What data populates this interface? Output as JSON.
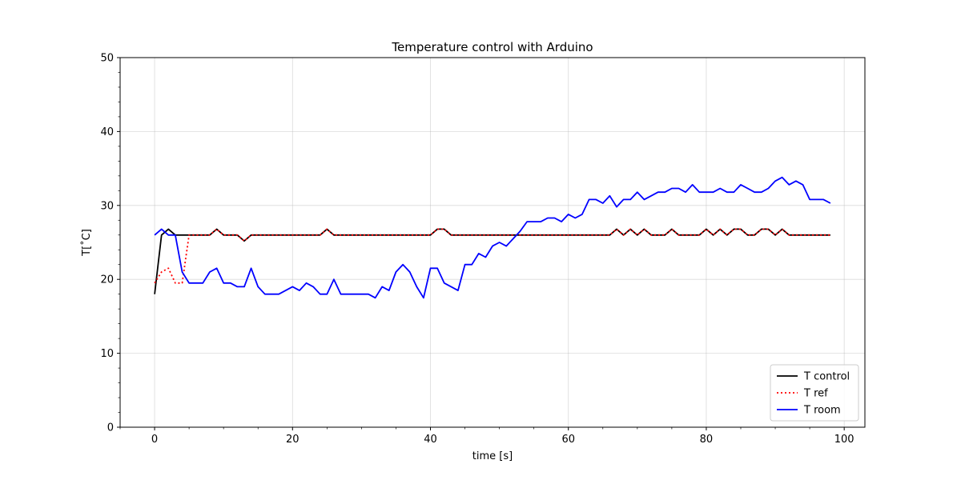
{
  "chart_data": {
    "type": "line",
    "title": "Temperature control with Arduino",
    "xlabel": "time [s]",
    "ylabel": "T[˚C]",
    "xlim": [
      -5,
      103
    ],
    "ylim": [
      0,
      50
    ],
    "xticks": [
      0,
      20,
      40,
      60,
      80,
      100
    ],
    "yticks": [
      0,
      10,
      20,
      30,
      40,
      50
    ],
    "grid": true,
    "legend_position": "lower-right",
    "series": [
      {
        "name": "T control",
        "color": "#000000",
        "style": "solid",
        "points": [
          [
            0,
            18
          ],
          [
            1,
            26
          ],
          [
            2,
            26.8
          ],
          [
            3,
            26
          ],
          [
            4,
            26
          ],
          [
            5,
            26
          ],
          [
            6,
            26
          ],
          [
            7,
            26
          ],
          [
            8,
            26
          ],
          [
            9,
            26.8
          ],
          [
            10,
            26
          ],
          [
            11,
            26
          ],
          [
            12,
            26
          ],
          [
            13,
            25.2
          ],
          [
            14,
            26
          ],
          [
            15,
            26
          ],
          [
            16,
            26
          ],
          [
            17,
            26
          ],
          [
            18,
            26
          ],
          [
            19,
            26
          ],
          [
            20,
            26
          ],
          [
            21,
            26
          ],
          [
            22,
            26
          ],
          [
            23,
            26
          ],
          [
            24,
            26
          ],
          [
            25,
            26.8
          ],
          [
            26,
            26
          ],
          [
            27,
            26
          ],
          [
            28,
            26
          ],
          [
            29,
            26
          ],
          [
            30,
            26
          ],
          [
            31,
            26
          ],
          [
            32,
            26
          ],
          [
            33,
            26
          ],
          [
            34,
            26
          ],
          [
            35,
            26
          ],
          [
            36,
            26
          ],
          [
            37,
            26
          ],
          [
            38,
            26
          ],
          [
            39,
            26
          ],
          [
            40,
            26
          ],
          [
            41,
            26.8
          ],
          [
            42,
            26.8
          ],
          [
            43,
            26
          ],
          [
            44,
            26
          ],
          [
            45,
            26
          ],
          [
            46,
            26
          ],
          [
            47,
            26
          ],
          [
            48,
            26
          ],
          [
            49,
            26
          ],
          [
            50,
            26
          ],
          [
            51,
            26
          ],
          [
            52,
            26
          ],
          [
            53,
            26
          ],
          [
            54,
            26
          ],
          [
            55,
            26
          ],
          [
            56,
            26
          ],
          [
            57,
            26
          ],
          [
            58,
            26
          ],
          [
            59,
            26
          ],
          [
            60,
            26
          ],
          [
            61,
            26
          ],
          [
            62,
            26
          ],
          [
            63,
            26
          ],
          [
            64,
            26
          ],
          [
            65,
            26
          ],
          [
            66,
            26
          ],
          [
            67,
            26.8
          ],
          [
            68,
            26
          ],
          [
            69,
            26.8
          ],
          [
            70,
            26
          ],
          [
            71,
            26.8
          ],
          [
            72,
            26
          ],
          [
            73,
            26
          ],
          [
            74,
            26
          ],
          [
            75,
            26.8
          ],
          [
            76,
            26
          ],
          [
            77,
            26
          ],
          [
            78,
            26
          ],
          [
            79,
            26
          ],
          [
            80,
            26.8
          ],
          [
            81,
            26
          ],
          [
            82,
            26.8
          ],
          [
            83,
            26
          ],
          [
            84,
            26.8
          ],
          [
            85,
            26.8
          ],
          [
            86,
            26
          ],
          [
            87,
            26
          ],
          [
            88,
            26.8
          ],
          [
            89,
            26.8
          ],
          [
            90,
            26
          ],
          [
            91,
            26.8
          ],
          [
            92,
            26
          ],
          [
            93,
            26
          ],
          [
            94,
            26
          ],
          [
            95,
            26
          ],
          [
            96,
            26
          ],
          [
            97,
            26
          ],
          [
            98,
            26
          ]
        ]
      },
      {
        "name": "T ref",
        "color": "#ff0000",
        "style": "dotted",
        "points": [
          [
            0,
            19.5
          ],
          [
            1,
            21
          ],
          [
            2,
            21.5
          ],
          [
            3,
            19.5
          ],
          [
            4,
            19.5
          ],
          [
            5,
            26
          ],
          [
            6,
            26
          ],
          [
            7,
            26
          ],
          [
            8,
            26
          ],
          [
            9,
            26.8
          ],
          [
            10,
            26
          ],
          [
            11,
            26
          ],
          [
            12,
            26
          ],
          [
            13,
            25.2
          ],
          [
            14,
            26
          ],
          [
            15,
            26
          ],
          [
            16,
            26
          ],
          [
            17,
            26
          ],
          [
            18,
            26
          ],
          [
            19,
            26
          ],
          [
            20,
            26
          ],
          [
            21,
            26
          ],
          [
            22,
            26
          ],
          [
            23,
            26
          ],
          [
            24,
            26
          ],
          [
            25,
            26.8
          ],
          [
            26,
            26
          ],
          [
            27,
            26
          ],
          [
            28,
            26
          ],
          [
            29,
            26
          ],
          [
            30,
            26
          ],
          [
            31,
            26
          ],
          [
            32,
            26
          ],
          [
            33,
            26
          ],
          [
            34,
            26
          ],
          [
            35,
            26
          ],
          [
            36,
            26
          ],
          [
            37,
            26
          ],
          [
            38,
            26
          ],
          [
            39,
            26
          ],
          [
            40,
            26
          ],
          [
            41,
            26.8
          ],
          [
            42,
            26.8
          ],
          [
            43,
            26
          ],
          [
            44,
            26
          ],
          [
            45,
            26
          ],
          [
            46,
            26
          ],
          [
            47,
            26
          ],
          [
            48,
            26
          ],
          [
            49,
            26
          ],
          [
            50,
            26
          ],
          [
            51,
            26
          ],
          [
            52,
            26
          ],
          [
            53,
            26
          ],
          [
            54,
            26
          ],
          [
            55,
            26
          ],
          [
            56,
            26
          ],
          [
            57,
            26
          ],
          [
            58,
            26
          ],
          [
            59,
            26
          ],
          [
            60,
            26
          ],
          [
            61,
            26
          ],
          [
            62,
            26
          ],
          [
            63,
            26
          ],
          [
            64,
            26
          ],
          [
            65,
            26
          ],
          [
            66,
            26
          ],
          [
            67,
            26.8
          ],
          [
            68,
            26
          ],
          [
            69,
            26.8
          ],
          [
            70,
            26
          ],
          [
            71,
            26.8
          ],
          [
            72,
            26
          ],
          [
            73,
            26
          ],
          [
            74,
            26
          ],
          [
            75,
            26.8
          ],
          [
            76,
            26
          ],
          [
            77,
            26
          ],
          [
            78,
            26
          ],
          [
            79,
            26
          ],
          [
            80,
            26.8
          ],
          [
            81,
            26
          ],
          [
            82,
            26.8
          ],
          [
            83,
            26
          ],
          [
            84,
            26.8
          ],
          [
            85,
            26.8
          ],
          [
            86,
            26
          ],
          [
            87,
            26
          ],
          [
            88,
            26.8
          ],
          [
            89,
            26.8
          ],
          [
            90,
            26
          ],
          [
            91,
            26.8
          ],
          [
            92,
            26
          ],
          [
            93,
            26
          ],
          [
            94,
            26
          ],
          [
            95,
            26
          ],
          [
            96,
            26
          ],
          [
            97,
            26
          ],
          [
            98,
            26
          ]
        ]
      },
      {
        "name": "T room",
        "color": "#0000ff",
        "style": "solid",
        "points": [
          [
            0,
            26
          ],
          [
            1,
            26.8
          ],
          [
            2,
            26
          ],
          [
            3,
            26
          ],
          [
            4,
            21
          ],
          [
            5,
            19.5
          ],
          [
            6,
            19.5
          ],
          [
            7,
            19.5
          ],
          [
            8,
            21
          ],
          [
            9,
            21.5
          ],
          [
            10,
            19.5
          ],
          [
            11,
            19.5
          ],
          [
            12,
            19
          ],
          [
            13,
            19
          ],
          [
            14,
            21.5
          ],
          [
            15,
            19
          ],
          [
            16,
            18
          ],
          [
            17,
            18
          ],
          [
            18,
            18
          ],
          [
            19,
            18.5
          ],
          [
            20,
            19
          ],
          [
            21,
            18.5
          ],
          [
            22,
            19.5
          ],
          [
            23,
            19
          ],
          [
            24,
            18
          ],
          [
            25,
            18
          ],
          [
            26,
            20
          ],
          [
            27,
            18
          ],
          [
            28,
            18
          ],
          [
            29,
            18
          ],
          [
            30,
            18
          ],
          [
            31,
            18
          ],
          [
            32,
            17.5
          ],
          [
            33,
            19
          ],
          [
            34,
            18.5
          ],
          [
            35,
            21
          ],
          [
            36,
            22
          ],
          [
            37,
            21
          ],
          [
            38,
            19
          ],
          [
            39,
            17.5
          ],
          [
            40,
            21.5
          ],
          [
            41,
            21.5
          ],
          [
            42,
            19.5
          ],
          [
            43,
            19
          ],
          [
            44,
            18.5
          ],
          [
            45,
            22
          ],
          [
            46,
            22
          ],
          [
            47,
            23.5
          ],
          [
            48,
            23
          ],
          [
            49,
            24.5
          ],
          [
            50,
            25
          ],
          [
            51,
            24.5
          ],
          [
            52,
            25.5
          ],
          [
            53,
            26.5
          ],
          [
            54,
            27.8
          ],
          [
            55,
            27.8
          ],
          [
            56,
            27.8
          ],
          [
            57,
            28.3
          ],
          [
            58,
            28.3
          ],
          [
            59,
            27.8
          ],
          [
            60,
            28.8
          ],
          [
            61,
            28.3
          ],
          [
            62,
            28.8
          ],
          [
            63,
            30.8
          ],
          [
            64,
            30.8
          ],
          [
            65,
            30.3
          ],
          [
            66,
            31.3
          ],
          [
            67,
            29.8
          ],
          [
            68,
            30.8
          ],
          [
            69,
            30.8
          ],
          [
            70,
            31.8
          ],
          [
            71,
            30.8
          ],
          [
            72,
            31.3
          ],
          [
            73,
            31.8
          ],
          [
            74,
            31.8
          ],
          [
            75,
            32.3
          ],
          [
            76,
            32.3
          ],
          [
            77,
            31.8
          ],
          [
            78,
            32.8
          ],
          [
            79,
            31.8
          ],
          [
            80,
            31.8
          ],
          [
            81,
            31.8
          ],
          [
            82,
            32.3
          ],
          [
            83,
            31.8
          ],
          [
            84,
            31.8
          ],
          [
            85,
            32.8
          ],
          [
            86,
            32.3
          ],
          [
            87,
            31.8
          ],
          [
            88,
            31.8
          ],
          [
            89,
            32.3
          ],
          [
            90,
            33.3
          ],
          [
            91,
            33.8
          ],
          [
            92,
            32.8
          ],
          [
            93,
            33.3
          ],
          [
            94,
            32.8
          ],
          [
            95,
            30.8
          ],
          [
            96,
            30.8
          ],
          [
            97,
            30.8
          ],
          [
            98,
            30.3
          ]
        ]
      }
    ]
  }
}
